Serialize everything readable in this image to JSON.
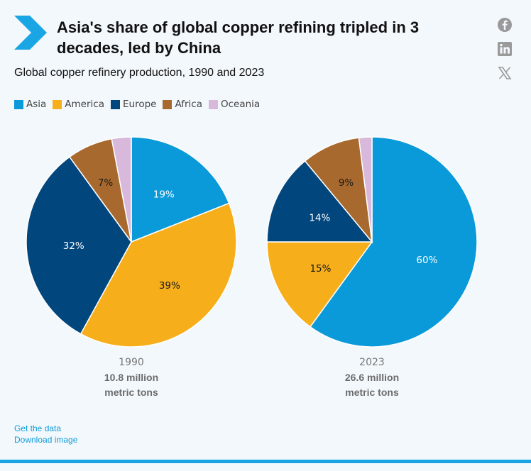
{
  "title": "Asia's share of global copper refining tripled in 3 decades, led by China",
  "subtitle": "Global copper refinery production, 1990 and 2023",
  "colors": {
    "Asia": "#0a9ad9",
    "America": "#f7ae1b",
    "Europe": "#02467e",
    "Africa": "#a8692f",
    "Oceania": "#d8b9dc",
    "accent": "#0e9bd8",
    "background": "#f3f8fc"
  },
  "social": {
    "icons": [
      "facebook-icon",
      "linkedin-icon",
      "x-icon"
    ]
  },
  "legend": [
    "Asia",
    "America",
    "Europe",
    "Africa",
    "Oceania"
  ],
  "chart_data": [
    {
      "type": "pie",
      "year": "1990",
      "total": "10.8 million metric tons",
      "slices": [
        {
          "name": "Asia",
          "value": 19,
          "label": "19%"
        },
        {
          "name": "America",
          "value": 39,
          "label": "39%"
        },
        {
          "name": "Europe",
          "value": 32,
          "label": "32%"
        },
        {
          "name": "Africa",
          "value": 7,
          "label": "7%"
        },
        {
          "name": "Oceania",
          "value": 3,
          "label": ""
        }
      ]
    },
    {
      "type": "pie",
      "year": "2023",
      "total": "26.6 million metric tons",
      "slices": [
        {
          "name": "Asia",
          "value": 60,
          "label": "60%"
        },
        {
          "name": "America",
          "value": 15,
          "label": "15%"
        },
        {
          "name": "Europe",
          "value": 14,
          "label": "14%"
        },
        {
          "name": "Africa",
          "value": 9,
          "label": "9%"
        },
        {
          "name": "Oceania",
          "value": 2,
          "label": ""
        }
      ]
    }
  ],
  "captions": [
    {
      "year": "1990",
      "total_line1": "10.8 million",
      "total_line2": "metric tons"
    },
    {
      "year": "2023",
      "total_line1": "26.6 million",
      "total_line2": "metric tons"
    }
  ],
  "links": {
    "get_data": "Get the data",
    "download": "Download image"
  }
}
